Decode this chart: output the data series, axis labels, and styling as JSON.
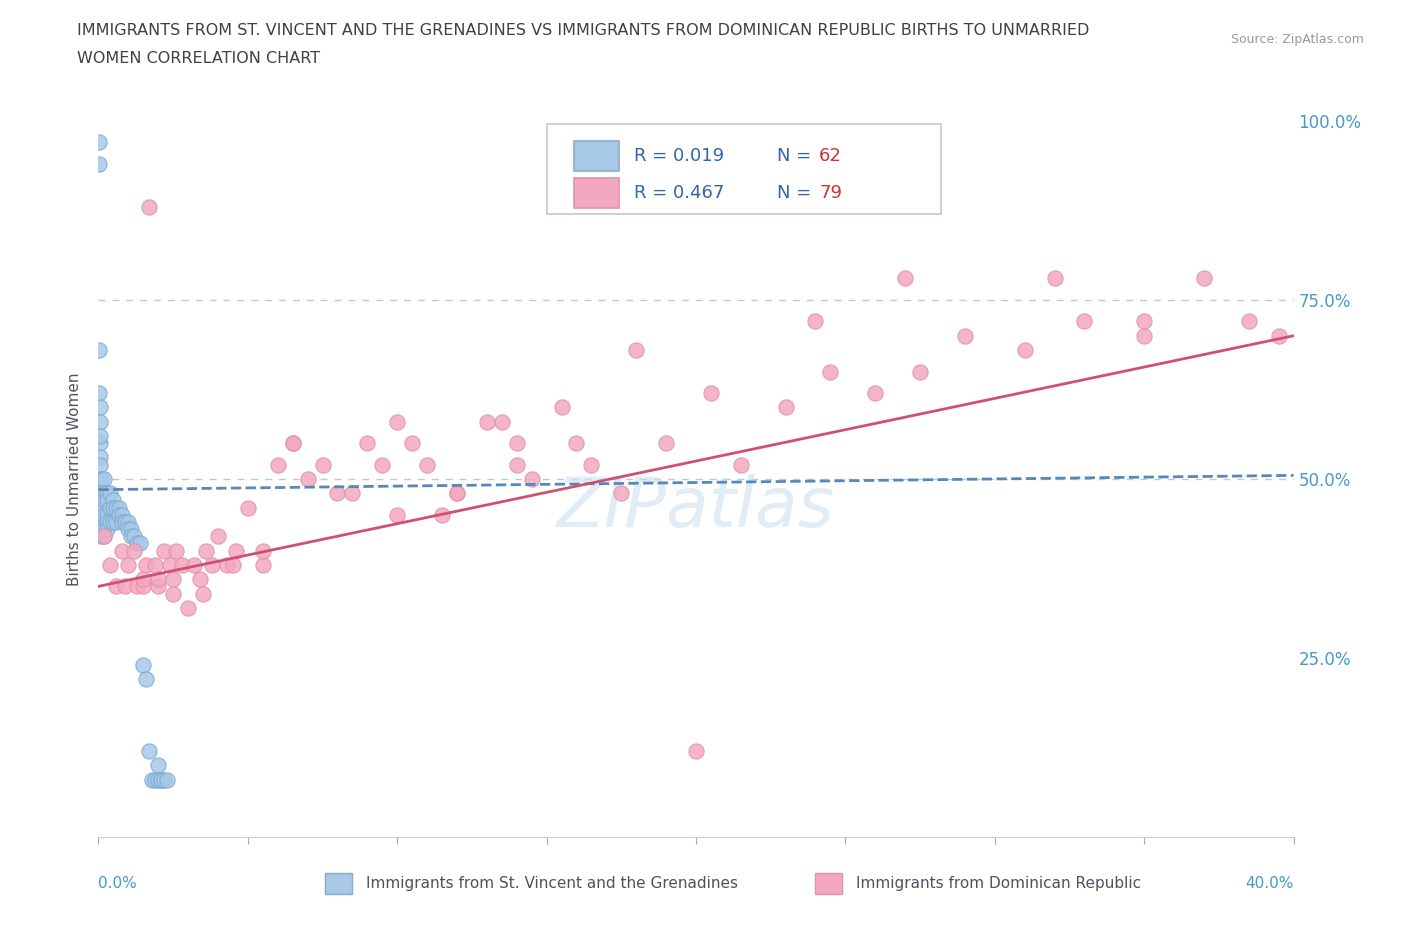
{
  "title_line1": "IMMIGRANTS FROM ST. VINCENT AND THE GRENADINES VS IMMIGRANTS FROM DOMINICAN REPUBLIC BIRTHS TO UNMARRIED",
  "title_line2": "WOMEN CORRELATION CHART",
  "source": "Source: ZipAtlas.com",
  "ylabel": "Births to Unmarried Women",
  "legend1_color": "#a8c8e8",
  "legend2_color": "#f4a8c0",
  "trendline1_color": "#5588bb",
  "trendline2_color": "#d05070",
  "scatter1_color": "#a8c8e8",
  "scatter2_color": "#f4a8c0",
  "scatter1_edge": "#7aaad0",
  "scatter2_edge": "#e090a8",
  "watermark": "ZIPatlas",
  "watermark_color": "#cce0f0",
  "dashed_line_color": "#c0c8d8",
  "bg_color": "#ffffff",
  "title_color": "#404040",
  "axis_label_color": "#505060",
  "legend_R_color": "#3366aa",
  "legend_N_color": "#cc3333",
  "right_axis_color": "#4499cc",
  "blue_scatter_x": [
    0.0002,
    0.0002,
    0.0003,
    0.0003,
    0.0004,
    0.0004,
    0.0005,
    0.0005,
    0.0006,
    0.0006,
    0.0007,
    0.0007,
    0.0008,
    0.0009,
    0.001,
    0.001,
    0.001,
    0.001,
    0.001,
    0.001,
    0.002,
    0.002,
    0.002,
    0.002,
    0.002,
    0.002,
    0.003,
    0.003,
    0.003,
    0.003,
    0.003,
    0.004,
    0.004,
    0.004,
    0.005,
    0.005,
    0.005,
    0.006,
    0.006,
    0.007,
    0.007,
    0.008,
    0.008,
    0.009,
    0.01,
    0.01,
    0.011,
    0.011,
    0.012,
    0.013,
    0.014,
    0.015,
    0.016,
    0.017,
    0.018,
    0.019,
    0.02,
    0.02,
    0.021,
    0.021,
    0.022,
    0.023
  ],
  "blue_scatter_y": [
    0.97,
    0.94,
    0.68,
    0.62,
    0.55,
    0.6,
    0.58,
    0.53,
    0.56,
    0.52,
    0.5,
    0.48,
    0.48,
    0.46,
    0.5,
    0.48,
    0.47,
    0.46,
    0.44,
    0.42,
    0.5,
    0.48,
    0.47,
    0.45,
    0.43,
    0.42,
    0.48,
    0.47,
    0.45,
    0.44,
    0.43,
    0.48,
    0.46,
    0.44,
    0.47,
    0.46,
    0.44,
    0.46,
    0.44,
    0.46,
    0.45,
    0.45,
    0.44,
    0.44,
    0.44,
    0.43,
    0.43,
    0.42,
    0.42,
    0.41,
    0.41,
    0.24,
    0.22,
    0.12,
    0.08,
    0.08,
    0.1,
    0.08,
    0.08,
    0.08,
    0.08,
    0.08
  ],
  "pink_scatter_x": [
    0.002,
    0.004,
    0.006,
    0.008,
    0.009,
    0.01,
    0.012,
    0.013,
    0.015,
    0.016,
    0.017,
    0.019,
    0.02,
    0.022,
    0.024,
    0.025,
    0.026,
    0.028,
    0.03,
    0.032,
    0.034,
    0.036,
    0.038,
    0.04,
    0.043,
    0.046,
    0.05,
    0.055,
    0.06,
    0.065,
    0.07,
    0.075,
    0.08,
    0.09,
    0.1,
    0.11,
    0.12,
    0.13,
    0.14,
    0.155,
    0.165,
    0.175,
    0.19,
    0.205,
    0.215,
    0.23,
    0.245,
    0.26,
    0.275,
    0.29,
    0.31,
    0.33,
    0.35,
    0.37,
    0.385,
    0.395,
    0.015,
    0.02,
    0.025,
    0.035,
    0.045,
    0.055,
    0.065,
    0.085,
    0.095,
    0.105,
    0.115,
    0.135,
    0.145,
    0.2,
    0.32,
    0.35,
    0.27,
    0.24,
    0.18,
    0.16,
    0.14,
    0.12,
    0.1
  ],
  "pink_scatter_y": [
    0.42,
    0.38,
    0.35,
    0.4,
    0.35,
    0.38,
    0.4,
    0.35,
    0.35,
    0.38,
    0.88,
    0.38,
    0.35,
    0.4,
    0.38,
    0.36,
    0.4,
    0.38,
    0.32,
    0.38,
    0.36,
    0.4,
    0.38,
    0.42,
    0.38,
    0.4,
    0.46,
    0.38,
    0.52,
    0.55,
    0.5,
    0.52,
    0.48,
    0.55,
    0.58,
    0.52,
    0.48,
    0.58,
    0.55,
    0.6,
    0.52,
    0.48,
    0.55,
    0.62,
    0.52,
    0.6,
    0.65,
    0.62,
    0.65,
    0.7,
    0.68,
    0.72,
    0.7,
    0.78,
    0.72,
    0.7,
    0.36,
    0.36,
    0.34,
    0.34,
    0.38,
    0.4,
    0.55,
    0.48,
    0.52,
    0.55,
    0.45,
    0.58,
    0.5,
    0.12,
    0.78,
    0.72,
    0.78,
    0.72,
    0.68,
    0.55,
    0.52,
    0.48,
    0.45
  ]
}
